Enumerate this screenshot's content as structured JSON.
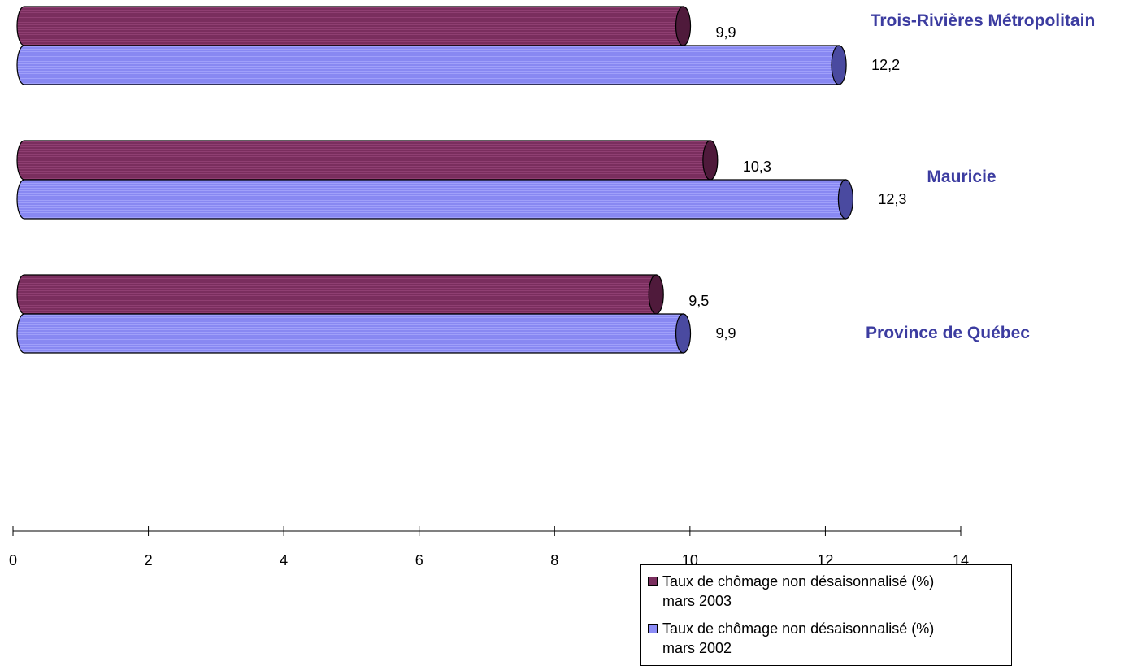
{
  "chart_data": {
    "type": "bar",
    "orientation": "horizontal",
    "categories": [
      "Trois-Rivières Métropolitain",
      "Mauricie",
      "Province de Québec"
    ],
    "series": [
      {
        "name": "Taux de chômage non désaisonnalisé  (%) mars 2003",
        "values": [
          9.9,
          10.3,
          9.5
        ],
        "labels": [
          "9,9",
          "10,3",
          "9,5"
        ],
        "color": "#7a2e5e"
      },
      {
        "name": "Taux de chômage non désaisonnalisé  (%) mars 2002",
        "values": [
          12.2,
          12.3,
          9.9
        ],
        "labels": [
          "12,2",
          "12,3",
          "9,9"
        ],
        "color": "#8c8cf6"
      }
    ],
    "xlim": [
      0,
      14
    ],
    "xticks": [
      "0",
      "2",
      "4",
      "6",
      "8",
      "10",
      "12",
      "14"
    ],
    "category_label_color": "#3c3ca0",
    "legend_position": "bottom-right",
    "grid": false
  },
  "legend": {
    "items": [
      {
        "line1": "Taux de chômage non désaisonnalisé  (%)",
        "line2": "mars 2003"
      },
      {
        "line1": "Taux de chômage non désaisonnalisé  (%)",
        "line2": "mars 2002"
      }
    ]
  }
}
